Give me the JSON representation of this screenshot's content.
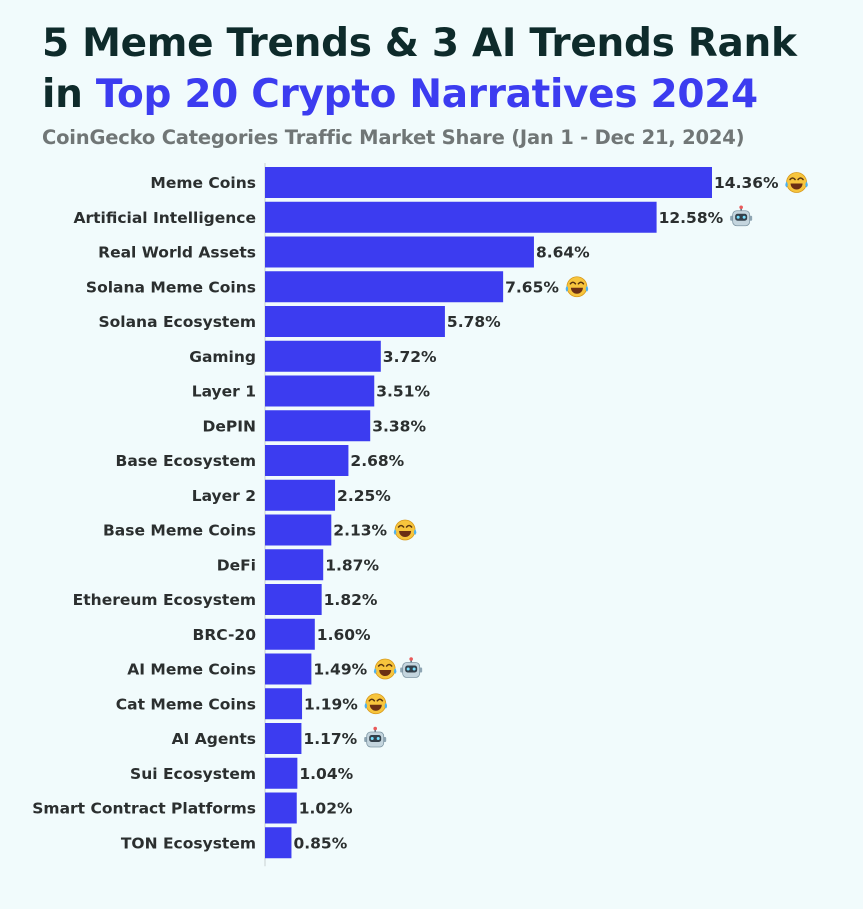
{
  "header": {
    "title_line1": "5 Meme Trends & 3 AI Trends Rank",
    "title_in": "in",
    "title_accent": "Top 20 Crypto Narratives 2024",
    "subtitle": "CoinGecko Categories Traffic Market Share (Jan 1 - Dec 21, 2024)"
  },
  "colors": {
    "bar": "#3c3cf0",
    "accent": "#3c3cf0",
    "title": "#0e2b2b",
    "subtitle": "#707676",
    "label": "#2b2f2f",
    "background": "#f1fbfc"
  },
  "chart_data": {
    "type": "bar",
    "orientation": "horizontal",
    "categories": [
      "Meme Coins",
      "Artificial Intelligence",
      "Real World Assets",
      "Solana Meme Coins",
      "Solana Ecosystem",
      "Gaming",
      "Layer 1",
      "DePIN",
      "Base Ecosystem",
      "Layer 2",
      "Base Meme Coins",
      "DeFi",
      "Ethereum Ecosystem",
      "BRC-20",
      "AI Meme Coins",
      "Cat Meme Coins",
      "AI Agents",
      "Sui Ecosystem",
      "Smart Contract Platforms",
      "TON Ecosystem"
    ],
    "values": [
      14.36,
      12.58,
      8.64,
      7.65,
      5.78,
      3.72,
      3.51,
      3.38,
      2.68,
      2.25,
      2.13,
      1.87,
      1.82,
      1.6,
      1.49,
      1.19,
      1.17,
      1.04,
      1.02,
      0.85
    ],
    "value_labels": [
      "14.36%",
      "12.58%",
      "8.64%",
      "7.65%",
      "5.78%",
      "3.72%",
      "3.51%",
      "3.38%",
      "2.68%",
      "2.25%",
      "2.13%",
      "1.87%",
      "1.82%",
      "1.60%",
      "1.49%",
      "1.19%",
      "1.17%",
      "1.04%",
      "1.02%",
      "0.85%"
    ],
    "tags": [
      [
        "meme"
      ],
      [
        "ai"
      ],
      [],
      [
        "meme"
      ],
      [],
      [],
      [],
      [],
      [],
      [],
      [
        "meme"
      ],
      [],
      [],
      [],
      [
        "meme",
        "ai"
      ],
      [
        "meme"
      ],
      [
        "ai"
      ],
      [],
      [],
      []
    ],
    "tag_icons": {
      "meme": "laughing-emoji-icon",
      "ai": "robot-emoji-icon"
    },
    "xlim": [
      0,
      14.36
    ],
    "grid": false,
    "legend": "none"
  }
}
